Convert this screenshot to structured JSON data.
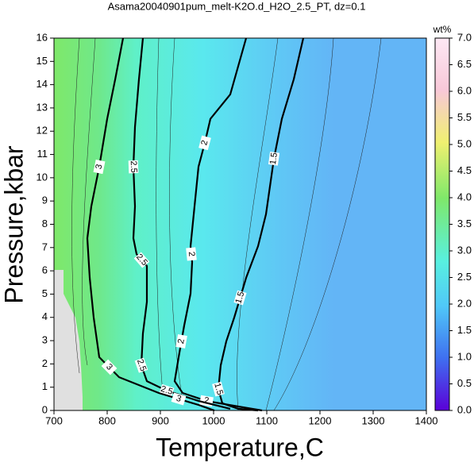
{
  "chart_data": {
    "type": "contour",
    "title": "Asama20040901pum_melt-K2O.d_H2O_2.5_PT, dz=0.1",
    "xlabel": "Temperature,C",
    "ylabel": "Pressure,kbar",
    "xlim": [
      700,
      1400
    ],
    "ylim": [
      0,
      16
    ],
    "xticks": [
      700,
      800,
      900,
      1000,
      1100,
      1200,
      1300,
      1400
    ],
    "yticks": [
      0,
      1,
      2,
      3,
      4,
      5,
      6,
      7,
      8,
      9,
      10,
      11,
      12,
      13,
      14,
      15,
      16
    ],
    "colorbar": {
      "label": "wt%",
      "clim": [
        0,
        7
      ],
      "ticks": [
        {
          "value": 0,
          "label": "0.0"
        },
        {
          "value": 0.5,
          "label": "0.5"
        },
        {
          "value": 1,
          "label": "1.0"
        },
        {
          "value": 1.5,
          "label": "1.5"
        },
        {
          "value": 2,
          "label": "2.0"
        },
        {
          "value": 2.5,
          "label": "2.5"
        },
        {
          "value": 3,
          "label": "3.0"
        },
        {
          "value": 3.5,
          "label": "3.5"
        },
        {
          "value": 4,
          "label": "4.0"
        },
        {
          "value": 4.5,
          "label": "4.5"
        },
        {
          "value": 5,
          "label": "5.0"
        },
        {
          "value": 5.5,
          "label": "5.5"
        },
        {
          "value": 6,
          "label": "6.0"
        },
        {
          "value": 6.5,
          "label": "6.5"
        },
        {
          "value": 7,
          "label": "7.0"
        }
      ]
    },
    "contours": [
      {
        "level": 1.5,
        "x": [
          1168.7,
          1150.7,
          1128.4,
          1113.4,
          1098.5,
          1083.6,
          1061.2,
          1038.8,
          1023.9,
          1013.4,
          1009,
          1016.4,
          1046.3,
          1083.6
        ],
        "y": [
          16,
          14.23,
          12.53,
          10.82,
          8.43,
          7.06,
          5.7,
          3.99,
          2.97,
          1.94,
          0.92,
          0.31,
          0.07,
          0
        ]
      },
      {
        "level": 2,
        "x": [
          1061.2,
          1031.3,
          994,
          983.6,
          971.6,
          964.2,
          956.7,
          959.7,
          956.7,
          944.8,
          934.3,
          926.9,
          941.8,
          986.6,
          1046.3,
          1091
        ],
        "y": [
          16,
          13.58,
          12.53,
          11.5,
          10.47,
          8.77,
          7.06,
          6.38,
          5.02,
          3.65,
          2.29,
          1.26,
          0.75,
          0.41,
          0.17,
          0
        ]
      },
      {
        "level": 2.5,
        "x": [
          867.2,
          859.7,
          852.2,
          849.3,
          852.2,
          849.3,
          855.2,
          874.6,
          874.6,
          867.2,
          864.2,
          874.6,
          911.9,
          971.6,
          1031.3
        ],
        "y": [
          16,
          14.23,
          12.18,
          10.47,
          8.77,
          7.4,
          6.72,
          6.21,
          4.67,
          3.31,
          1.94,
          1.26,
          0.85,
          0.41,
          0.07
        ]
      },
      {
        "level": 3,
        "x": [
          829.9,
          815,
          800,
          785.1,
          770.1,
          762.7,
          767.2,
          774.6,
          785.1,
          822.4,
          897,
          971.6,
          1001.5
        ],
        "y": [
          16,
          14.23,
          12.53,
          10.47,
          8.77,
          7.4,
          5.7,
          3.99,
          2.29,
          1.43,
          0.75,
          0.24,
          0
        ]
      }
    ]
  }
}
